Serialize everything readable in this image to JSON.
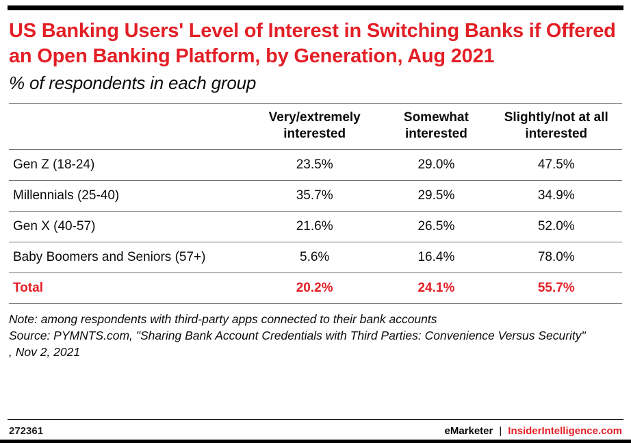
{
  "title": "US Banking Users' Level of Interest in Switching Banks if Offered an Open Banking Platform, by Generation, Aug 2021",
  "subtitle": "% of respondents in each group",
  "chart_data": {
    "type": "table",
    "title": "US Banking Users' Level of Interest in Switching Banks if Offered an Open Banking Platform, by Generation, Aug 2021",
    "subtitle": "% of respondents in each group",
    "unit": "%",
    "categories": [
      "Gen Z (18-24)",
      "Millennials (25-40)",
      "Gen X (40-57)",
      "Baby Boomers and Seniors (57+)",
      "Total"
    ],
    "series": [
      {
        "name": "Very/extremely interested",
        "values": [
          23.5,
          35.7,
          21.6,
          5.6,
          20.2
        ]
      },
      {
        "name": "Somewhat interested",
        "values": [
          29.0,
          29.5,
          26.5,
          16.4,
          24.1
        ]
      },
      {
        "name": "Slightly/not at all interested",
        "values": [
          47.5,
          34.9,
          52.0,
          78.0,
          55.7
        ]
      }
    ]
  },
  "table": {
    "col_headers": [
      "Very/extremely interested",
      "Somewhat interested",
      "Slightly/not at all interested"
    ],
    "rows": [
      {
        "label": "Gen Z (18-24)",
        "values": [
          "23.5%",
          "29.0%",
          "47.5%"
        ]
      },
      {
        "label": "Millennials (25-40)",
        "values": [
          "35.7%",
          "29.5%",
          "34.9%"
        ]
      },
      {
        "label": "Gen X (40-57)",
        "values": [
          "21.6%",
          "26.5%",
          "52.0%"
        ]
      },
      {
        "label": "Baby Boomers and Seniors (57+)",
        "values": [
          "5.6%",
          "16.4%",
          "78.0%"
        ]
      }
    ],
    "total": {
      "label": "Total",
      "values": [
        "20.2%",
        "24.1%",
        "55.7%"
      ]
    }
  },
  "notes": {
    "note": "Note: among respondents with third-party apps connected to their bank accounts",
    "source": "Source: PYMNTS.com, \"Sharing Bank Account Credentials with Third Parties: Convenience Versus Security\"",
    "date": ", Nov 2, 2021"
  },
  "footer": {
    "chart_id": "272361",
    "brand_left": "eMarketer",
    "divider": "|",
    "brand_right": "InsiderIntelligence.com"
  },
  "colors": {
    "accent_red": "#e31f26",
    "bar_black": "#000000"
  }
}
